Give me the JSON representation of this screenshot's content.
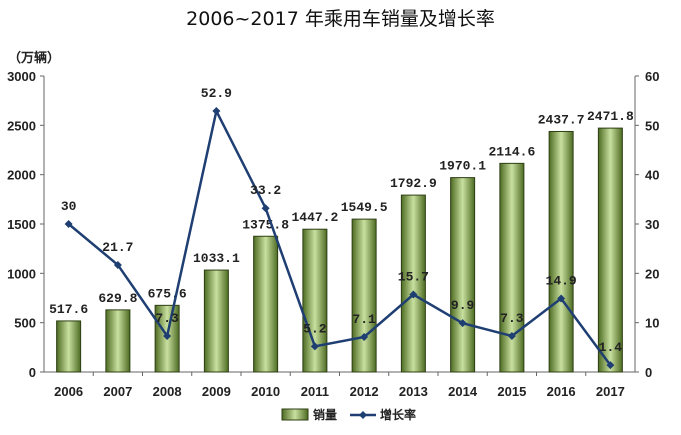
{
  "chart_data": {
    "type": "bar+line",
    "title": "2006~2017 年乘用车销量及增长率",
    "ylabel": "（万辆）",
    "categories": [
      "2006",
      "2007",
      "2008",
      "2009",
      "2010",
      "2011",
      "2012",
      "2013",
      "2014",
      "2015",
      "2016",
      "2017"
    ],
    "series": [
      {
        "name": "销量",
        "type": "bar",
        "axis": "left",
        "color": "#6b8e3a",
        "values": [
          517.6,
          629.8,
          675.6,
          1033.1,
          1375.8,
          1447.2,
          1549.5,
          1792.9,
          1970.1,
          2114.6,
          2437.7,
          2471.8
        ],
        "labels": [
          "517.6",
          "629.8",
          "675.6",
          "1033.1",
          "1375.8",
          "1447.2",
          "1549.5",
          "1792.9",
          "1970.1",
          "2114.6",
          "2437.7",
          "2471.8"
        ]
      },
      {
        "name": "增长率",
        "type": "line",
        "axis": "right",
        "color": "#1f3f73",
        "values": [
          30,
          21.7,
          7.3,
          52.9,
          33.2,
          5.2,
          7.1,
          15.7,
          9.9,
          7.3,
          14.9,
          1.4
        ],
        "labels": [
          "30",
          "21.7",
          "7.3",
          "52.9",
          "33.2",
          "5.2",
          "7.1",
          "15.7",
          "9.9",
          "7.3",
          "14.9",
          "1.4"
        ]
      }
    ],
    "y_left": {
      "range": [
        0,
        3000
      ],
      "ticks": [
        "0",
        "500",
        "1000",
        "1500",
        "2000",
        "2500",
        "3000"
      ]
    },
    "y_right": {
      "range": [
        0,
        60
      ],
      "ticks": [
        "0",
        "10",
        "20",
        "30",
        "40",
        "50",
        "60"
      ]
    },
    "grid": false,
    "legend": "bottom"
  }
}
